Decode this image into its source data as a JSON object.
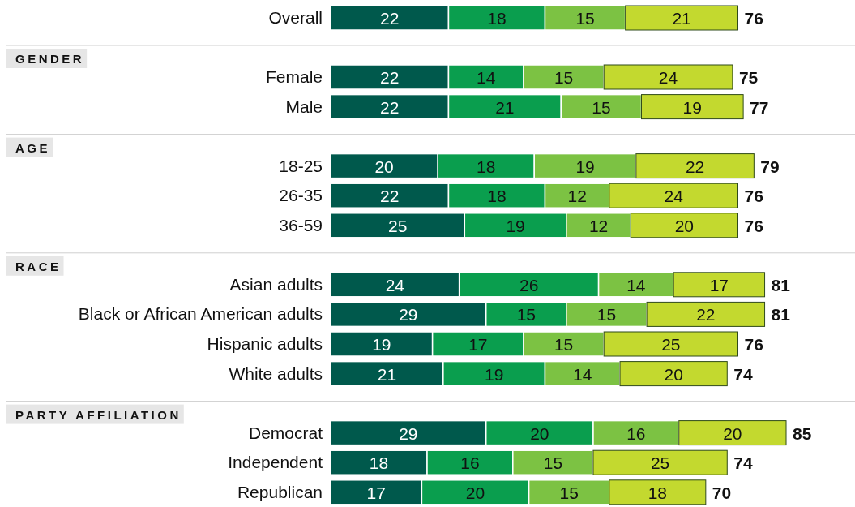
{
  "chart_data": {
    "type": "bar",
    "orientation": "horizontal",
    "stacked": true,
    "data_labels": true,
    "categories": [
      "Overall",
      null,
      "Female",
      "Male",
      null,
      "18-25",
      "26-35",
      "36-59",
      null,
      "Asian adults",
      "Black or African American adults",
      "Hispanic adults",
      "White adults",
      null,
      "Democrat",
      "Independent",
      "Republican"
    ],
    "series": [
      {
        "color": "#00594c",
        "values": [
          22,
          null,
          22,
          22,
          null,
          20,
          22,
          25,
          null,
          24,
          29,
          19,
          21,
          null,
          29,
          18,
          17
        ]
      },
      {
        "color": "#0a9e4e",
        "values": [
          18,
          null,
          14,
          21,
          null,
          18,
          18,
          19,
          null,
          26,
          15,
          17,
          19,
          null,
          20,
          16,
          20
        ]
      },
      {
        "color": "#7cc243",
        "values": [
          15,
          null,
          15,
          15,
          null,
          19,
          12,
          12,
          null,
          14,
          15,
          15,
          14,
          null,
          16,
          15,
          15
        ]
      },
      {
        "color": "#c3d92f",
        "values": [
          21,
          null,
          24,
          19,
          null,
          22,
          24,
          20,
          null,
          17,
          22,
          25,
          20,
          null,
          20,
          25,
          18
        ]
      }
    ],
    "totals": [
      "76",
      null,
      "75",
      "77",
      null,
      "79",
      "76",
      "76",
      null,
      "81",
      "81",
      "76",
      "74",
      null,
      "85",
      "74",
      "70"
    ],
    "annotations": [
      "GENDER",
      "AGE",
      "RACE",
      "PARTY AFFILIATION"
    ]
  }
}
